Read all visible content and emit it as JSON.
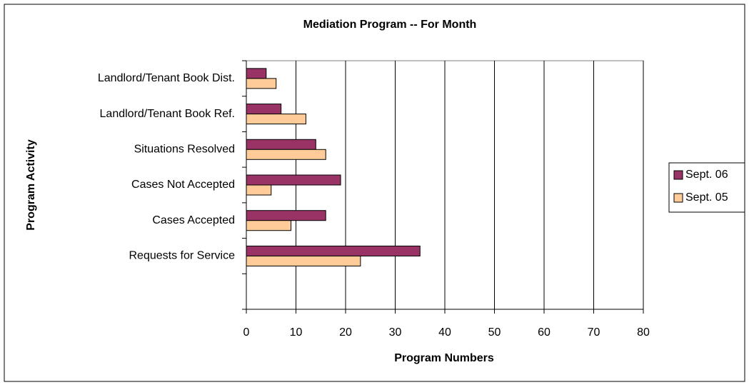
{
  "chart_data": {
    "type": "bar",
    "orientation": "horizontal",
    "title": "Mediation Program -- For Month",
    "xlabel": "Program Numbers",
    "ylabel": "Program Activity",
    "categories": [
      "Landlord/Tenant Book Dist.",
      "Landlord/Tenant Book Ref.",
      "Situations Resolved",
      "Cases Not Accepted",
      "Cases Accepted",
      "Requests for Service",
      null
    ],
    "series": [
      {
        "name": "Sept. 06",
        "color": "#993366",
        "values": [
          4,
          7,
          14,
          19,
          16,
          35,
          null
        ]
      },
      {
        "name": "Sept. 05",
        "color": "#ffcc99",
        "values": [
          6,
          12,
          16,
          5,
          9,
          23,
          null
        ]
      }
    ],
    "xlim": [
      0,
      80
    ],
    "xticks": [
      0,
      10,
      20,
      30,
      40,
      50,
      60,
      70,
      80
    ],
    "grid": true,
    "legend": "right"
  }
}
